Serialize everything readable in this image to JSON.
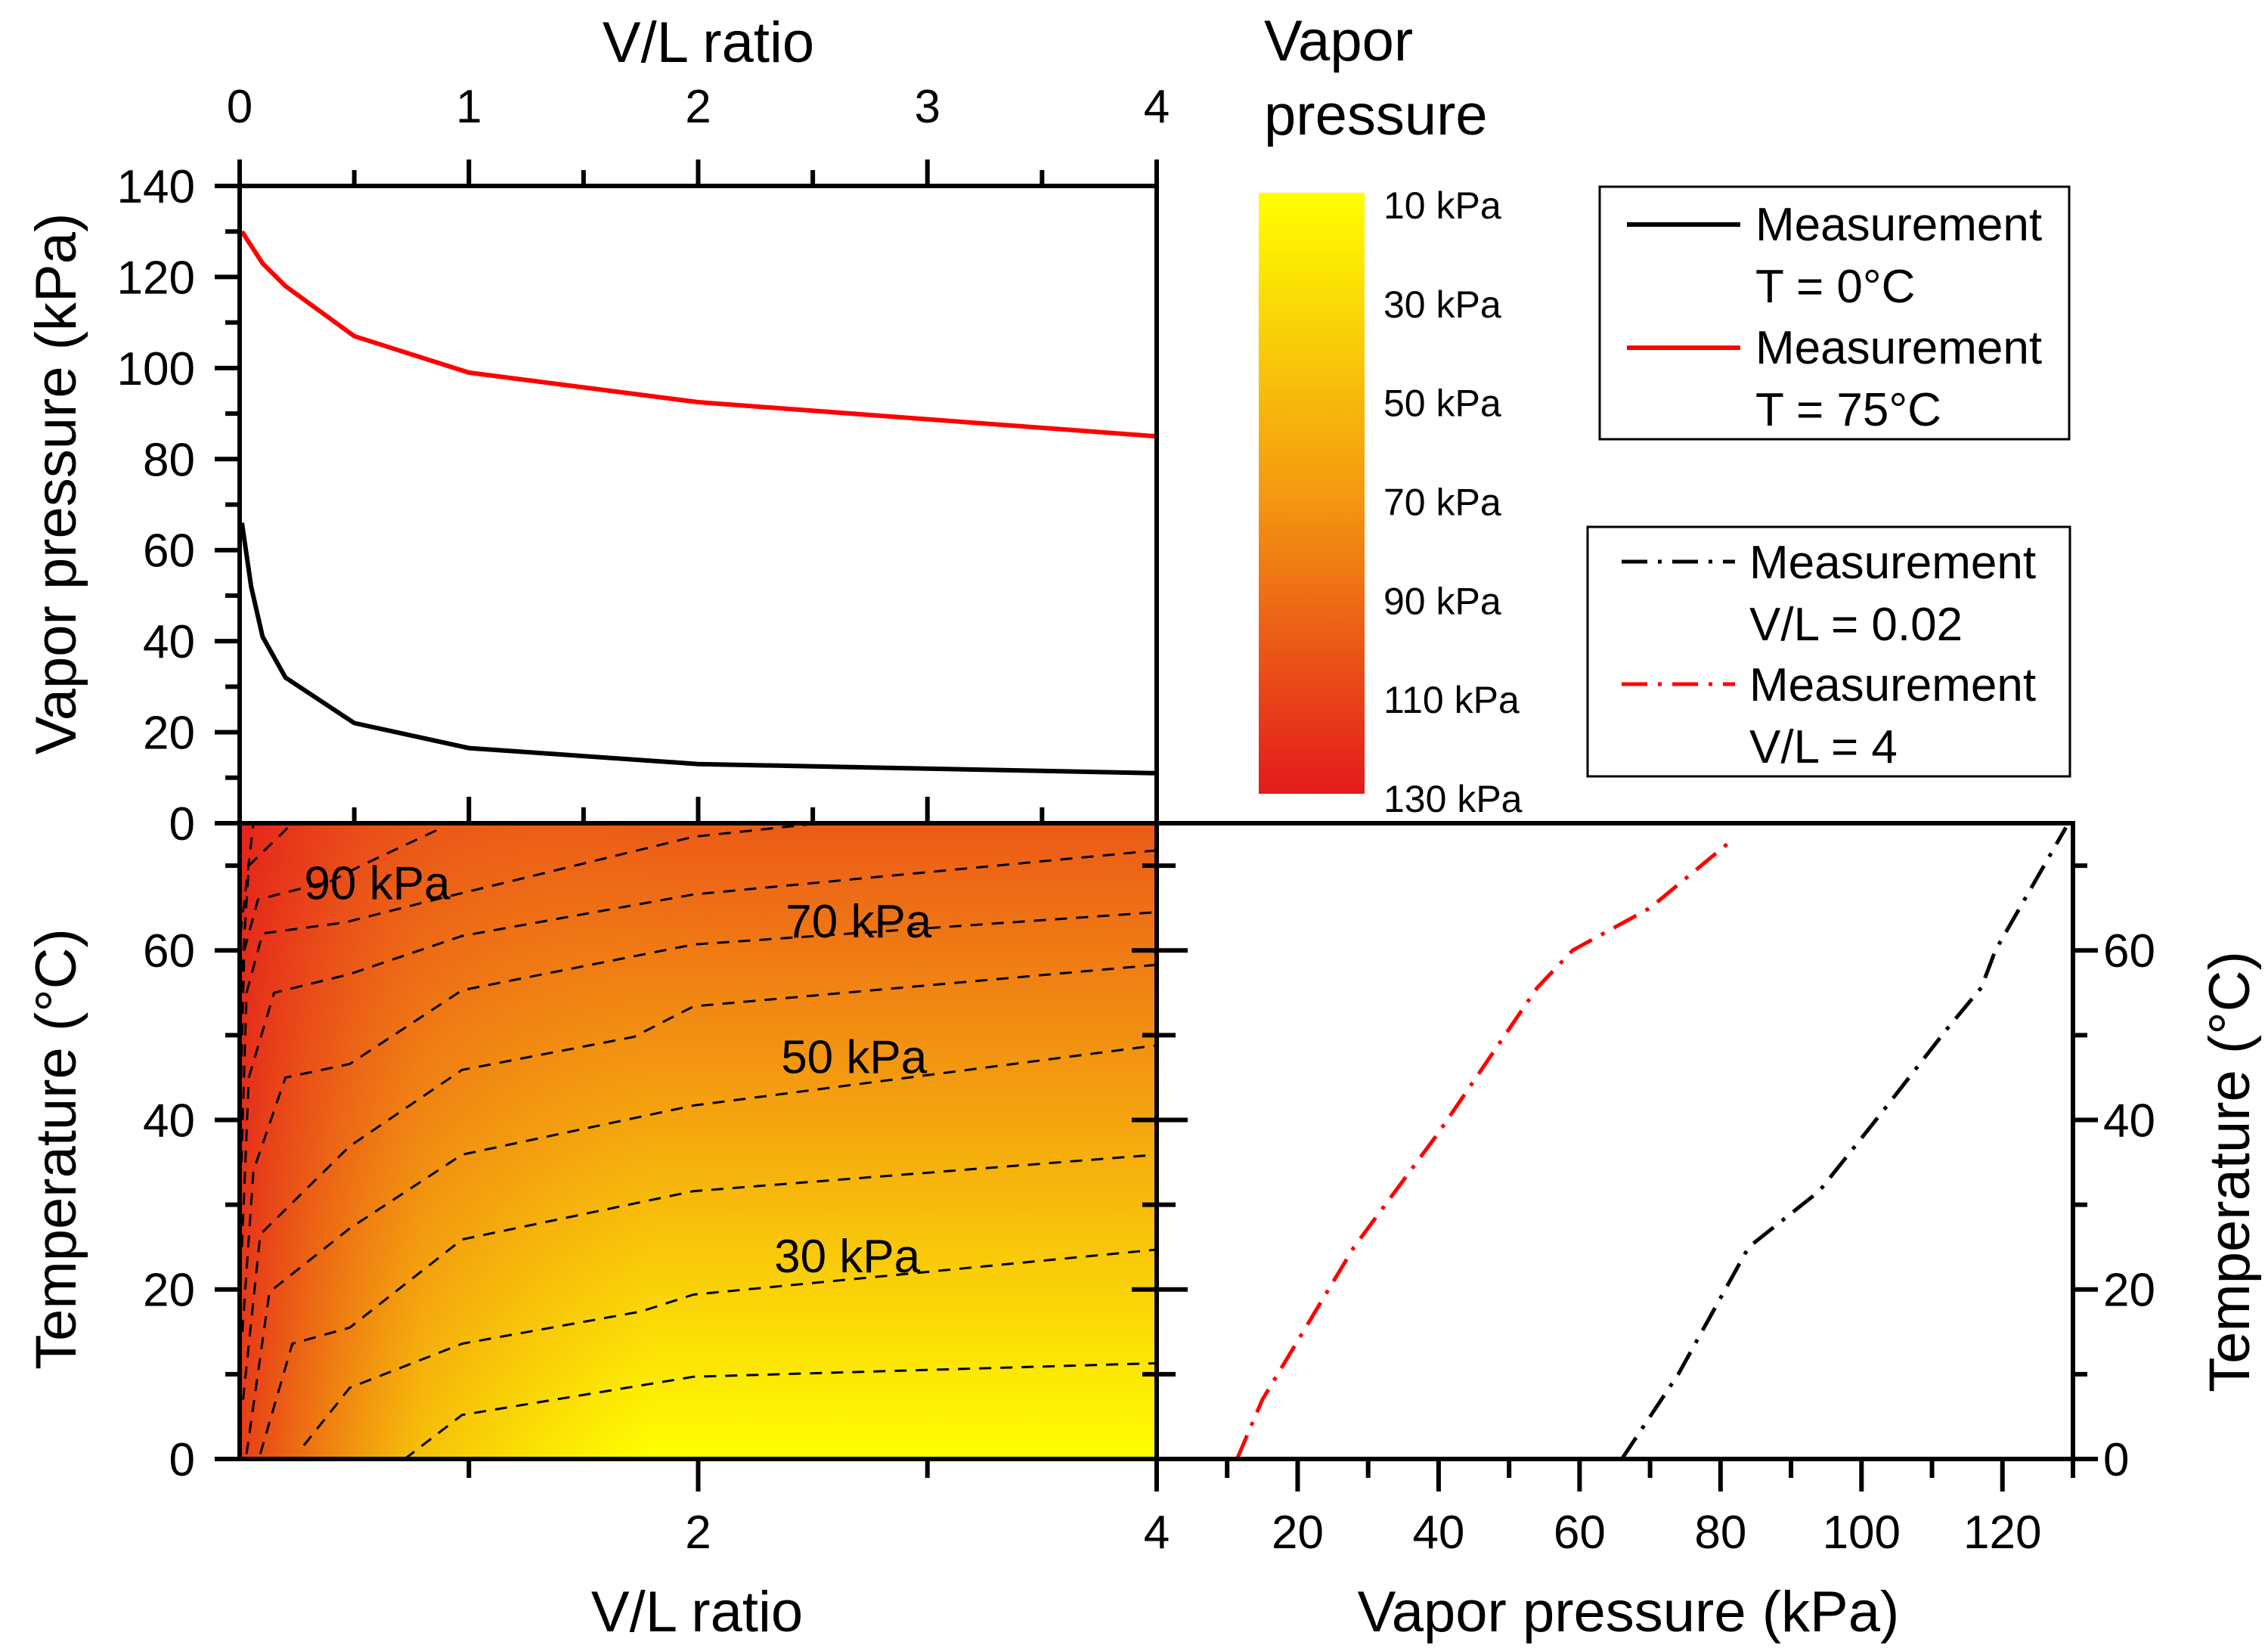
{
  "chart_data": [
    {
      "type": "line",
      "panel": "top-left",
      "xlabel": "V/L ratio",
      "ylabel": "Vapor pressure (kPa)",
      "xlim": [
        0,
        4
      ],
      "ylim": [
        0,
        140
      ],
      "xticks": [
        "0",
        "1",
        "2",
        "3",
        "4"
      ],
      "yticks": [
        "0",
        "20",
        "40",
        "60",
        "80",
        "100",
        "120",
        "140"
      ],
      "series": [
        {
          "name": "Measurement T = 0°C",
          "color": "#000000",
          "style": "solid",
          "x": [
            0.01,
            0.05,
            0.1,
            0.2,
            0.5,
            1,
            2,
            4
          ],
          "y": [
            66,
            52,
            41,
            32,
            22,
            16.5,
            13,
            11
          ]
        },
        {
          "name": "Measurement T = 75°C",
          "color": "#ff0000",
          "style": "solid",
          "x": [
            0.01,
            0.1,
            0.2,
            0.5,
            1,
            2,
            4
          ],
          "y": [
            130,
            123,
            118,
            107,
            99,
            92.5,
            85
          ]
        }
      ]
    },
    {
      "type": "heatmap",
      "panel": "bottom-left",
      "xlabel": "V/L ratio",
      "ylabel": "Temperature (°C)",
      "xlim": [
        0,
        4
      ],
      "ylim": [
        0,
        75
      ],
      "xticks": [
        "2",
        "4"
      ],
      "yticks": [
        "0",
        "20",
        "40",
        "60"
      ],
      "colorbar": {
        "title": [
          "Vapor",
          "pressure"
        ],
        "labels": [
          "10 kPa",
          "30 kPa",
          "50 kPa",
          "70 kPa",
          "90 kPa",
          "110 kPa",
          "130 kPa"
        ],
        "colors": [
          "#ffff00",
          "#e31a1c"
        ]
      },
      "contour_labels": [
        {
          "text": "90 kPa",
          "x": 0.6,
          "y": 68
        },
        {
          "text": "70 kPa",
          "x": 2.7,
          "y": 63.5
        },
        {
          "text": "50 kPa",
          "x": 2.68,
          "y": 47.5
        },
        {
          "text": "30 kPa",
          "x": 2.65,
          "y": 24
        }
      ],
      "contours": [
        {
          "level": 20,
          "x": [
            0.72,
            0.97,
            1.98,
            4
          ],
          "y": [
            0,
            5.2,
            9.7,
            11.3
          ]
        },
        {
          "level": 30,
          "x": [
            0.28,
            0.48,
            0.97,
            1.75,
            1.98,
            4
          ],
          "y": [
            1.6,
            8.4,
            13.6,
            17.4,
            19.4,
            24.7
          ]
        },
        {
          "level": 40,
          "x": [
            0.09,
            0.23,
            0.48,
            0.97,
            1.98,
            4
          ],
          "y": [
            0.6,
            13.6,
            15.5,
            25.9,
            31.6,
            35.9
          ]
        },
        {
          "level": 50,
          "x": [
            0.03,
            0.13,
            0.48,
            0.97,
            1.98,
            4
          ],
          "y": [
            0.6,
            19.7,
            27.2,
            35.9,
            41.7,
            48.8
          ]
        },
        {
          "level": 60,
          "x": [
            0.015,
            0.09,
            0.48,
            0.97,
            1.72,
            1.98,
            4
          ],
          "y": [
            7,
            26.5,
            36.9,
            45.9,
            49.8,
            53.4,
            58.3
          ]
        },
        {
          "level": 70,
          "x": [
            0.012,
            0.06,
            0.2,
            0.48,
            0.97,
            1.98,
            4
          ],
          "y": [
            15,
            34,
            45,
            46.6,
            55.3,
            60.7,
            64.5
          ]
        },
        {
          "level": 80,
          "x": [
            0.01,
            0.04,
            0.15,
            0.48,
            0.97,
            1.98,
            4
          ],
          "y": [
            25,
            45,
            55,
            57.2,
            61.7,
            66.6,
            71.8
          ]
        },
        {
          "level": 90,
          "x": [
            0.008,
            0.03,
            0.1,
            0.46,
            0.84,
            1.98,
            2.53
          ],
          "y": [
            35,
            55,
            62,
            63.3,
            65.9,
            73.4,
            75
          ]
        },
        {
          "level": 100,
          "x": [
            0.006,
            0.02,
            0.08,
            0.4,
            0.53,
            0.87
          ],
          "y": [
            45,
            60,
            66,
            68.2,
            70,
            74.3
          ]
        },
        {
          "level": 110,
          "x": [
            0.005,
            0.04,
            0.23
          ],
          "y": [
            55,
            70,
            75
          ]
        },
        {
          "level": 120,
          "x": [
            0.004,
            0.06
          ],
          "y": [
            62,
            75
          ]
        }
      ]
    },
    {
      "type": "line",
      "panel": "bottom-right",
      "xlabel": "Vapor pressure (kPa)",
      "ylabel": "Temperature (°C)",
      "xlim": [
        0,
        130
      ],
      "ylim": [
        0,
        75
      ],
      "xticks": [
        "20",
        "40",
        "60",
        "80",
        "100",
        "120"
      ],
      "yticks": [
        "0",
        "20",
        "40",
        "60"
      ],
      "series": [
        {
          "name": "Measurement V/L = 0.02",
          "color": "#000000",
          "style": "dash-dot",
          "x": [
            66,
            74,
            84,
            94,
            103,
            112,
            117,
            119,
            129
          ],
          "y": [
            0,
            10,
            25,
            31.6,
            41,
            50.6,
            55.6,
            60,
            74.5
          ]
        },
        {
          "name": "Measurement V/L = 4",
          "color": "#ff0000",
          "style": "dash-dot",
          "x": [
            11.4,
            15,
            28,
            40,
            54,
            59,
            70,
            81.6
          ],
          "y": [
            0,
            7,
            25,
            38.5,
            55.6,
            60,
            65,
            73
          ]
        }
      ]
    }
  ],
  "legend1": [
    {
      "line1": "Measurement",
      "line2": "T = 0°C"
    },
    {
      "line1": "Measurement",
      "line2": "T = 75°C"
    }
  ],
  "legend2": [
    {
      "line1": "Measurement",
      "line2": "V/L = 0.02"
    },
    {
      "line1": "Measurement",
      "line2": "V/L = 4"
    }
  ]
}
